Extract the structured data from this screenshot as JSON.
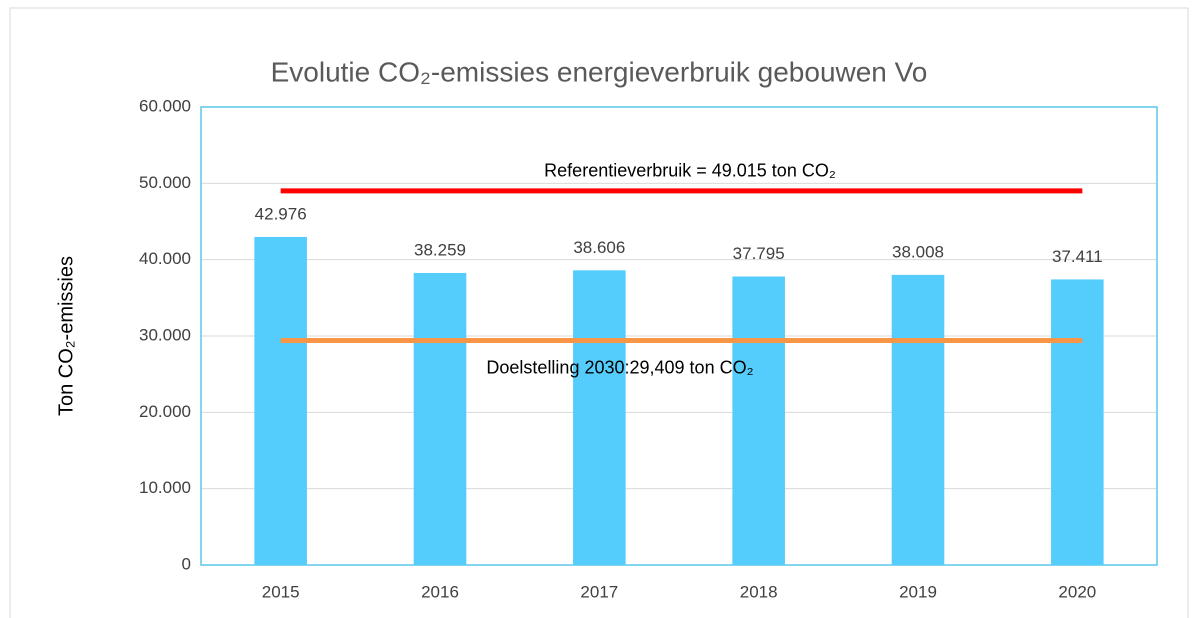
{
  "chart_data": {
    "type": "bar",
    "title": "Evolutie CO₂-emissies energieverbruik gebouwen Vo",
    "y_label": "Ton CO₂-emissies",
    "categories": [
      "2015",
      "2016",
      "2017",
      "2018",
      "2019",
      "2020"
    ],
    "values": [
      42976,
      38259,
      38606,
      37795,
      38008,
      37411
    ],
    "value_labels": [
      "42.976",
      "38.259",
      "38.606",
      "37.795",
      "38.008",
      "37.411"
    ],
    "color": "#55cdfc",
    "ylim": [
      0,
      60000
    ],
    "yticks": [
      0,
      {
        "value": 10000,
        "label": "10.000"
      },
      {
        "value": 20000,
        "label": "20.000"
      },
      {
        "value": 30000,
        "label": "30.000"
      },
      {
        "value": 40000,
        "label": "40.000"
      },
      {
        "value": 50000,
        "label": "50.000"
      },
      {
        "value": 60000,
        "label": "60.000"
      }
    ],
    "grid": true,
    "reference_lines": [
      {
        "name": "Referentieverbruik = 49.015 ton CO₂",
        "value": 49015,
        "color": "#ff0000"
      },
      {
        "name": "Doelstelling 2030:29,409 ton CO₂",
        "value": 29409,
        "color": "#f79646"
      }
    ]
  }
}
